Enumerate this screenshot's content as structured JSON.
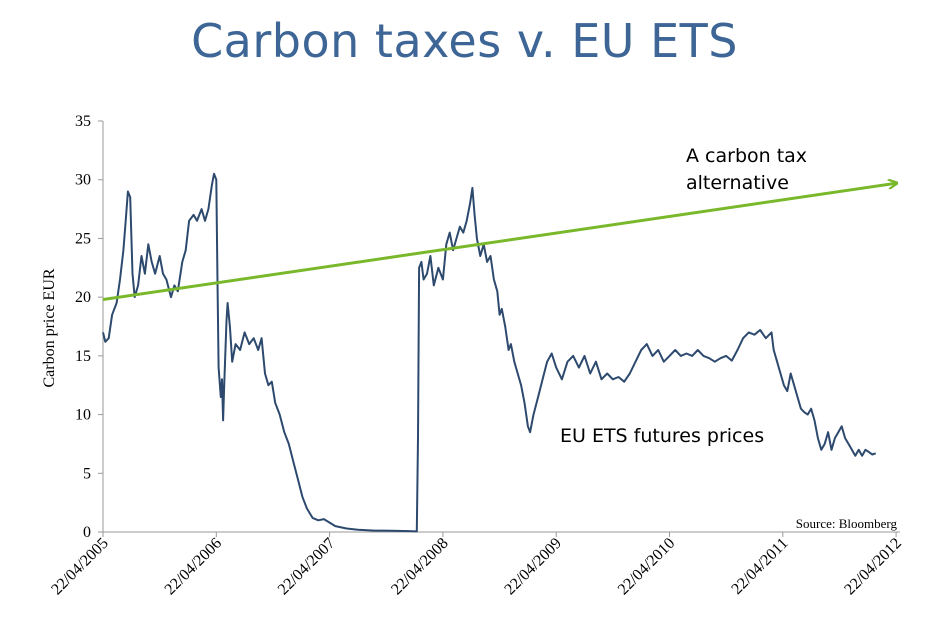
{
  "title": "Carbon taxes v. EU ETS",
  "chart_data": {
    "type": "line",
    "ylabel": "Carbon price EUR",
    "ylim": [
      0,
      35
    ],
    "yticks": [
      0,
      5,
      10,
      15,
      20,
      25,
      30,
      35
    ],
    "xticks": [
      "22/04/2005",
      "22/04/2006",
      "22/04/2007",
      "22/04/2008",
      "22/04/2009",
      "22/04/2010",
      "22/04/2011",
      "22/04/2012"
    ],
    "x_units": "years since 22/04/2005",
    "series": [
      {
        "name": "EU ETS futures prices",
        "color": "#2d4a6e",
        "points": [
          [
            0.0,
            17.0
          ],
          [
            0.02,
            16.2
          ],
          [
            0.05,
            16.5
          ],
          [
            0.08,
            18.5
          ],
          [
            0.12,
            19.5
          ],
          [
            0.15,
            21.5
          ],
          [
            0.18,
            24.0
          ],
          [
            0.2,
            26.5
          ],
          [
            0.22,
            29.0
          ],
          [
            0.24,
            28.5
          ],
          [
            0.26,
            22.0
          ],
          [
            0.28,
            20.0
          ],
          [
            0.31,
            21.0
          ],
          [
            0.34,
            23.5
          ],
          [
            0.37,
            22.0
          ],
          [
            0.4,
            24.5
          ],
          [
            0.43,
            23.0
          ],
          [
            0.46,
            22.0
          ],
          [
            0.5,
            23.5
          ],
          [
            0.53,
            22.0
          ],
          [
            0.56,
            21.5
          ],
          [
            0.6,
            20.0
          ],
          [
            0.63,
            21.0
          ],
          [
            0.66,
            20.5
          ],
          [
            0.7,
            23.0
          ],
          [
            0.73,
            24.0
          ],
          [
            0.76,
            26.5
          ],
          [
            0.8,
            27.0
          ],
          [
            0.83,
            26.5
          ],
          [
            0.87,
            27.5
          ],
          [
            0.9,
            26.5
          ],
          [
            0.93,
            27.5
          ],
          [
            0.96,
            29.5
          ],
          [
            0.98,
            30.5
          ],
          [
            1.0,
            30.0
          ],
          [
            1.01,
            22.0
          ],
          [
            1.02,
            14.0
          ],
          [
            1.04,
            11.5
          ],
          [
            1.05,
            13.0
          ],
          [
            1.06,
            9.5
          ],
          [
            1.07,
            12.5
          ],
          [
            1.09,
            18.0
          ],
          [
            1.1,
            19.5
          ],
          [
            1.12,
            17.5
          ],
          [
            1.14,
            14.5
          ],
          [
            1.17,
            16.0
          ],
          [
            1.21,
            15.5
          ],
          [
            1.25,
            17.0
          ],
          [
            1.29,
            16.0
          ],
          [
            1.33,
            16.5
          ],
          [
            1.37,
            15.5
          ],
          [
            1.4,
            16.5
          ],
          [
            1.43,
            13.5
          ],
          [
            1.46,
            12.5
          ],
          [
            1.49,
            12.8
          ],
          [
            1.52,
            11.0
          ],
          [
            1.56,
            10.0
          ],
          [
            1.6,
            8.5
          ],
          [
            1.64,
            7.5
          ],
          [
            1.68,
            6.0
          ],
          [
            1.72,
            4.5
          ],
          [
            1.76,
            3.0
          ],
          [
            1.8,
            2.0
          ],
          [
            1.85,
            1.2
          ],
          [
            1.9,
            1.0
          ],
          [
            1.95,
            1.1
          ],
          [
            2.0,
            0.8
          ],
          [
            2.05,
            0.5
          ],
          [
            2.15,
            0.3
          ],
          [
            2.25,
            0.2
          ],
          [
            2.4,
            0.12
          ],
          [
            2.55,
            0.1
          ],
          [
            2.7,
            0.08
          ],
          [
            2.77,
            0.05
          ],
          [
            2.78,
            8.0
          ],
          [
            2.79,
            22.5
          ],
          [
            2.81,
            23.0
          ],
          [
            2.83,
            21.5
          ],
          [
            2.86,
            22.0
          ],
          [
            2.89,
            23.5
          ],
          [
            2.92,
            21.0
          ],
          [
            2.96,
            22.5
          ],
          [
            3.0,
            21.5
          ],
          [
            3.03,
            24.5
          ],
          [
            3.06,
            25.5
          ],
          [
            3.09,
            24.0
          ],
          [
            3.12,
            25.0
          ],
          [
            3.15,
            26.0
          ],
          [
            3.18,
            25.5
          ],
          [
            3.21,
            26.5
          ],
          [
            3.24,
            28.0
          ],
          [
            3.26,
            29.3
          ],
          [
            3.28,
            27.0
          ],
          [
            3.3,
            25.0
          ],
          [
            3.33,
            23.5
          ],
          [
            3.36,
            24.5
          ],
          [
            3.39,
            23.0
          ],
          [
            3.42,
            23.5
          ],
          [
            3.45,
            21.5
          ],
          [
            3.48,
            20.5
          ],
          [
            3.5,
            18.5
          ],
          [
            3.52,
            19.0
          ],
          [
            3.55,
            17.5
          ],
          [
            3.58,
            15.5
          ],
          [
            3.6,
            16.0
          ],
          [
            3.63,
            14.5
          ],
          [
            3.66,
            13.5
          ],
          [
            3.69,
            12.5
          ],
          [
            3.72,
            11.0
          ],
          [
            3.75,
            9.0
          ],
          [
            3.77,
            8.5
          ],
          [
            3.8,
            10.0
          ],
          [
            3.84,
            11.5
          ],
          [
            3.88,
            13.0
          ],
          [
            3.92,
            14.5
          ],
          [
            3.96,
            15.2
          ],
          [
            4.0,
            14.0
          ],
          [
            4.05,
            13.0
          ],
          [
            4.1,
            14.5
          ],
          [
            4.15,
            15.0
          ],
          [
            4.2,
            14.0
          ],
          [
            4.25,
            15.0
          ],
          [
            4.3,
            13.5
          ],
          [
            4.35,
            14.5
          ],
          [
            4.4,
            13.0
          ],
          [
            4.45,
            13.5
          ],
          [
            4.5,
            13.0
          ],
          [
            4.55,
            13.2
          ],
          [
            4.6,
            12.8
          ],
          [
            4.65,
            13.5
          ],
          [
            4.7,
            14.5
          ],
          [
            4.75,
            15.5
          ],
          [
            4.8,
            16.0
          ],
          [
            4.85,
            15.0
          ],
          [
            4.9,
            15.5
          ],
          [
            4.95,
            14.5
          ],
          [
            5.0,
            15.0
          ],
          [
            5.05,
            15.5
          ],
          [
            5.1,
            15.0
          ],
          [
            5.15,
            15.2
          ],
          [
            5.2,
            15.0
          ],
          [
            5.25,
            15.5
          ],
          [
            5.3,
            15.0
          ],
          [
            5.35,
            14.8
          ],
          [
            5.4,
            14.5
          ],
          [
            5.45,
            14.8
          ],
          [
            5.5,
            15.0
          ],
          [
            5.55,
            14.6
          ],
          [
            5.6,
            15.5
          ],
          [
            5.65,
            16.5
          ],
          [
            5.7,
            17.0
          ],
          [
            5.75,
            16.8
          ],
          [
            5.8,
            17.2
          ],
          [
            5.85,
            16.5
          ],
          [
            5.9,
            17.0
          ],
          [
            5.92,
            15.5
          ],
          [
            5.95,
            14.5
          ],
          [
            5.98,
            13.5
          ],
          [
            6.01,
            12.5
          ],
          [
            6.04,
            12.0
          ],
          [
            6.07,
            13.5
          ],
          [
            6.1,
            12.5
          ],
          [
            6.13,
            11.5
          ],
          [
            6.16,
            10.5
          ],
          [
            6.19,
            10.2
          ],
          [
            6.22,
            10.0
          ],
          [
            6.25,
            10.5
          ],
          [
            6.28,
            9.5
          ],
          [
            6.31,
            8.0
          ],
          [
            6.34,
            7.0
          ],
          [
            6.37,
            7.5
          ],
          [
            6.4,
            8.5
          ],
          [
            6.43,
            7.0
          ],
          [
            6.46,
            8.0
          ],
          [
            6.49,
            8.5
          ],
          [
            6.52,
            9.0
          ],
          [
            6.55,
            8.0
          ],
          [
            6.58,
            7.5
          ],
          [
            6.61,
            7.0
          ],
          [
            6.64,
            6.5
          ],
          [
            6.67,
            7.0
          ],
          [
            6.7,
            6.5
          ],
          [
            6.73,
            7.0
          ],
          [
            6.76,
            6.8
          ],
          [
            6.79,
            6.6
          ],
          [
            6.82,
            6.7
          ]
        ]
      },
      {
        "name": "A carbon tax alternative",
        "color": "#7ab82b",
        "points": [
          [
            0.0,
            19.8
          ],
          [
            7.0,
            29.7
          ]
        ]
      }
    ],
    "annotations": [
      "A carbon tax\nalternative",
      "EU ETS futures prices"
    ],
    "source": "Source: Bloomberg"
  }
}
